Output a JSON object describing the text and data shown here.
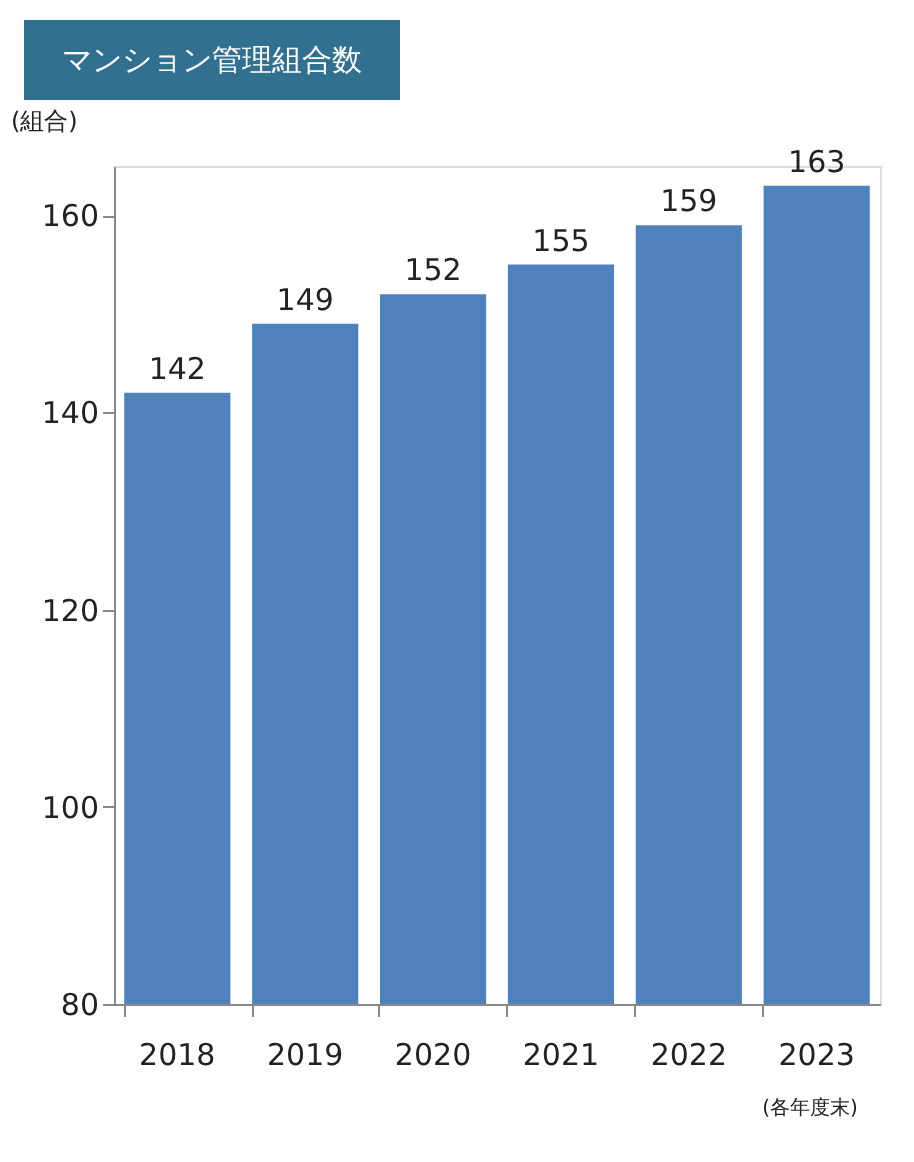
{
  "chart_data": {
    "type": "bar",
    "title": "マンション管理組合数",
    "ylabel": "(組合)",
    "annotations": [
      "(各年度末)"
    ],
    "categories": [
      "2018",
      "2019",
      "2020",
      "2021",
      "2022",
      "2023"
    ],
    "values": [
      142,
      149,
      152,
      155,
      159,
      163
    ],
    "color": "#4f81bd",
    "ylim": [
      80,
      165
    ],
    "yticks": [
      80,
      100,
      120,
      140,
      160
    ],
    "data_labels": true,
    "grid": false
  }
}
